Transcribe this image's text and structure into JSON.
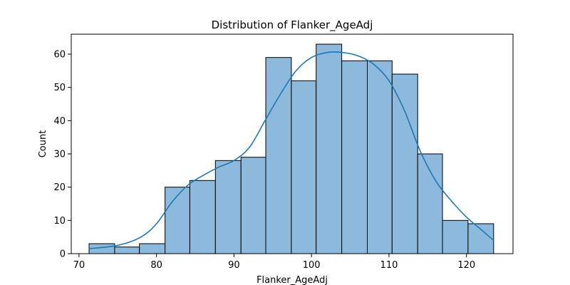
{
  "chart_data": {
    "type": "bar",
    "subtype": "histogram-with-kde",
    "title": "Distribution of Flanker_AgeAdj",
    "xlabel": "Flanker_AgeAdj",
    "ylabel": "Count",
    "xlim": [
      69,
      126
    ],
    "ylim": [
      0,
      66
    ],
    "xticks": [
      70,
      80,
      90,
      100,
      110,
      120
    ],
    "yticks": [
      0,
      10,
      20,
      30,
      40,
      50,
      60
    ],
    "grid": false,
    "legend": false,
    "bins": [
      {
        "x0": 71.3,
        "x1": 74.6,
        "count": 3
      },
      {
        "x0": 74.6,
        "x1": 77.8,
        "count": 2
      },
      {
        "x0": 77.8,
        "x1": 81.1,
        "count": 3
      },
      {
        "x0": 81.1,
        "x1": 84.3,
        "count": 20
      },
      {
        "x0": 84.3,
        "x1": 87.6,
        "count": 22
      },
      {
        "x0": 87.6,
        "x1": 90.9,
        "count": 28
      },
      {
        "x0": 90.9,
        "x1": 94.1,
        "count": 29
      },
      {
        "x0": 94.1,
        "x1": 97.4,
        "count": 59
      },
      {
        "x0": 97.4,
        "x1": 100.6,
        "count": 52
      },
      {
        "x0": 100.6,
        "x1": 103.9,
        "count": 63
      },
      {
        "x0": 103.9,
        "x1": 107.2,
        "count": 58
      },
      {
        "x0": 107.2,
        "x1": 110.4,
        "count": 58
      },
      {
        "x0": 110.4,
        "x1": 113.7,
        "count": 54
      },
      {
        "x0": 113.7,
        "x1": 116.9,
        "count": 30
      },
      {
        "x0": 116.9,
        "x1": 120.2,
        "count": 10
      },
      {
        "x0": 120.2,
        "x1": 123.5,
        "count": 9
      }
    ],
    "kde": {
      "x": [
        71.3,
        75,
        78,
        80,
        82,
        84,
        86,
        88,
        90,
        92,
        94,
        96,
        98,
        100,
        102,
        104,
        106,
        108,
        110,
        112,
        114,
        116,
        118,
        120,
        122,
        123.5
      ],
      "y": [
        1.5,
        2.5,
        5,
        9,
        15.5,
        20.5,
        23.5,
        26,
        28,
        32,
        40,
        48,
        55,
        59,
        60.5,
        60.5,
        59.5,
        57,
        52,
        43,
        31,
        22,
        16,
        11,
        7,
        4
      ]
    },
    "colors": {
      "bar_fill": "#8db9dc",
      "bar_edge": "#000000",
      "kde_line": "#1f77b4"
    }
  }
}
